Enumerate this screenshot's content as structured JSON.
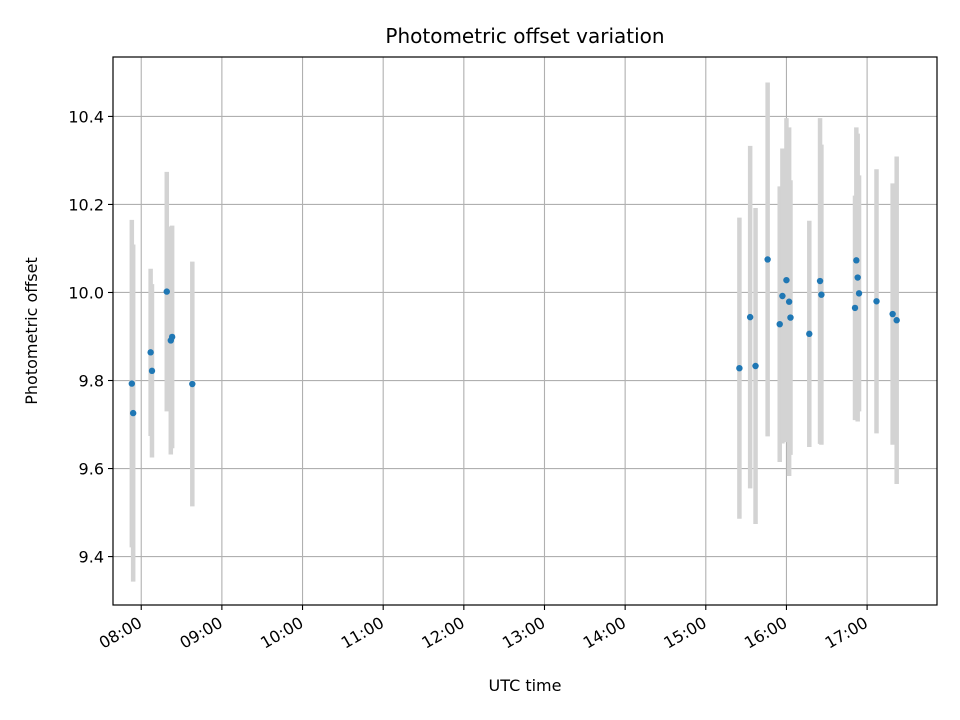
{
  "chart_data": {
    "type": "scatter",
    "title": "Photometric offset variation",
    "xlabel": "UTC time",
    "ylabel": "Photometric offset",
    "x_ticks": [
      "08:00",
      "09:00",
      "10:00",
      "11:00",
      "12:00",
      "13:00",
      "14:00",
      "15:00",
      "16:00",
      "17:00"
    ],
    "y_ticks": [
      "9.4",
      "9.6",
      "9.8",
      "10.0",
      "10.2",
      "10.4"
    ],
    "xlim": [
      "07:39",
      "17:52"
    ],
    "ylim": [
      9.29,
      10.535
    ],
    "grid": true,
    "series": [
      {
        "marker_color": "#1f77b4",
        "errorbar_color": "#d3d3d3",
        "points": [
          {
            "x": "07:53",
            "y": 9.793,
            "err": 0.372
          },
          {
            "x": "07:54",
            "y": 9.726,
            "err": 0.383
          },
          {
            "x": "08:07",
            "y": 9.864,
            "err": 0.19
          },
          {
            "x": "08:08",
            "y": 9.822,
            "err": 0.197
          },
          {
            "x": "08:19",
            "y": 10.002,
            "err": 0.272
          },
          {
            "x": "08:22",
            "y": 9.891,
            "err": 0.259
          },
          {
            "x": "08:23",
            "y": 9.899,
            "err": 0.253
          },
          {
            "x": "08:38",
            "y": 9.792,
            "err": 0.278
          },
          {
            "x": "15:25",
            "y": 9.828,
            "err": 0.342
          },
          {
            "x": "15:33",
            "y": 9.944,
            "err": 0.389
          },
          {
            "x": "15:37",
            "y": 9.833,
            "err": 0.359
          },
          {
            "x": "15:46",
            "y": 10.075,
            "err": 0.402
          },
          {
            "x": "15:55",
            "y": 9.928,
            "err": 0.313
          },
          {
            "x": "15:57",
            "y": 9.992,
            "err": 0.335
          },
          {
            "x": "16:00",
            "y": 10.028,
            "err": 0.368
          },
          {
            "x": "16:02",
            "y": 9.979,
            "err": 0.396
          },
          {
            "x": "16:03",
            "y": 9.943,
            "err": 0.312
          },
          {
            "x": "16:17",
            "y": 9.906,
            "err": 0.257
          },
          {
            "x": "16:25",
            "y": 10.026,
            "err": 0.37
          },
          {
            "x": "16:26",
            "y": 9.995,
            "err": 0.341
          },
          {
            "x": "16:51",
            "y": 9.965,
            "err": 0.255
          },
          {
            "x": "16:52",
            "y": 10.073,
            "err": 0.302
          },
          {
            "x": "16:53",
            "y": 10.034,
            "err": 0.327
          },
          {
            "x": "16:54",
            "y": 9.998,
            "err": 0.268
          },
          {
            "x": "17:07",
            "y": 9.98,
            "err": 0.3
          },
          {
            "x": "17:19",
            "y": 9.951,
            "err": 0.297
          },
          {
            "x": "17:22",
            "y": 9.937,
            "err": 0.372
          }
        ]
      }
    ]
  }
}
